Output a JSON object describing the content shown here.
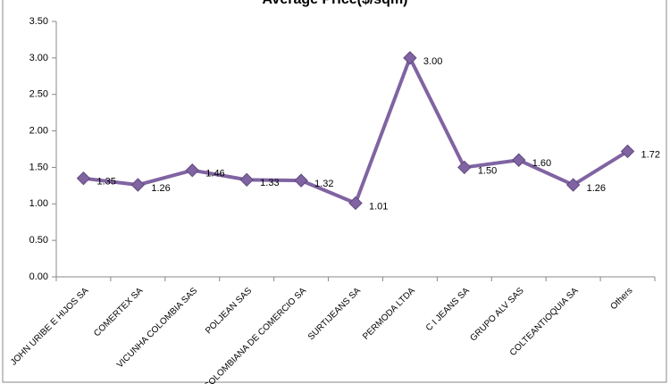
{
  "chart_data": {
    "type": "line",
    "title": "Average Price($/sqm)",
    "categories": [
      "JOHN URIBE E HIJOS SA",
      "COMERTEX SA",
      "VICUNHA COLOMBIA SAS",
      "POLJEAN SAS",
      "COLOMBIANA DE COMERCIO SA",
      "SURTIJEANS SA",
      "PERMODA LTDA",
      "C I JEANS SA",
      "GRUPO ALV SAS",
      "COLTEANTIOQUIA SA",
      "Others"
    ],
    "series": [
      {
        "name": "Average Price($/sqm)",
        "color": "#8064a2",
        "values": [
          1.35,
          1.26,
          1.46,
          1.33,
          1.32,
          1.01,
          3.0,
          1.5,
          1.6,
          1.26,
          1.72
        ],
        "value_labels": [
          "1.35",
          "1.26",
          "1.46",
          "1.33",
          "1.32",
          "1.01",
          "3.00",
          "1.50",
          "1.60",
          "1.26",
          "1.72"
        ]
      }
    ],
    "ylim": [
      0,
      3.5
    ],
    "yticks": [
      {
        "value": 0,
        "label": "0.00"
      },
      {
        "value": 0.5,
        "label": "0.50"
      },
      {
        "value": 1,
        "label": "1.00"
      },
      {
        "value": 1.5,
        "label": "1.50"
      },
      {
        "value": 2,
        "label": "2.00"
      },
      {
        "value": 2.5,
        "label": "2.50"
      },
      {
        "value": 3,
        "label": "3.00"
      },
      {
        "value": 3.5,
        "label": "3.50"
      }
    ],
    "grid": false
  }
}
